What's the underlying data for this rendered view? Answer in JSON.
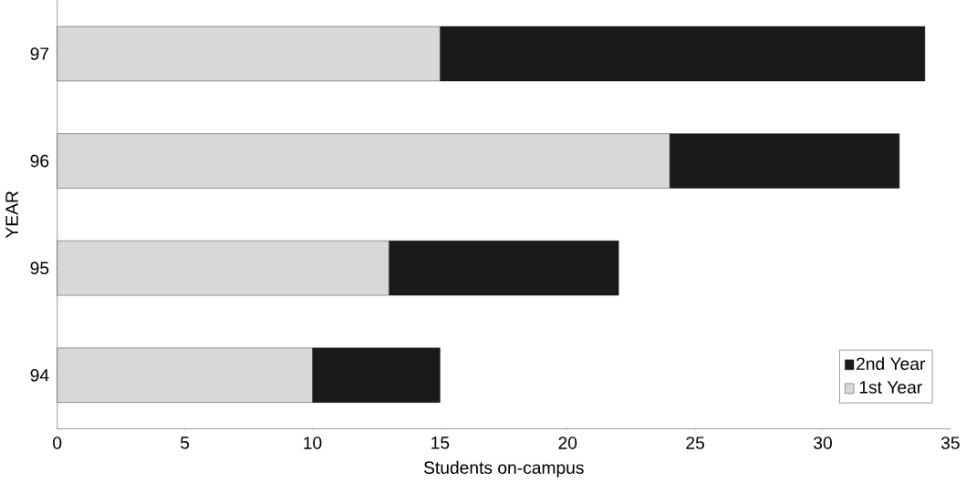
{
  "chart_data": {
    "type": "bar",
    "orientation": "horizontal",
    "stacked": true,
    "categories": [
      "97",
      "96",
      "95",
      "94"
    ],
    "series": [
      {
        "name": "1st Year",
        "color": "#d8d8d8",
        "values": [
          15,
          24,
          13,
          10
        ]
      },
      {
        "name": "2nd Year",
        "color": "#1a1a1a",
        "values": [
          19,
          9,
          9,
          5
        ]
      }
    ],
    "xlabel": "Students on-campus",
    "ylabel": "YEAR",
    "xlim": [
      0,
      35
    ],
    "xticks": [
      0,
      5,
      10,
      15,
      20,
      25,
      30,
      35
    ],
    "grid": false,
    "legend": "bottom right"
  }
}
